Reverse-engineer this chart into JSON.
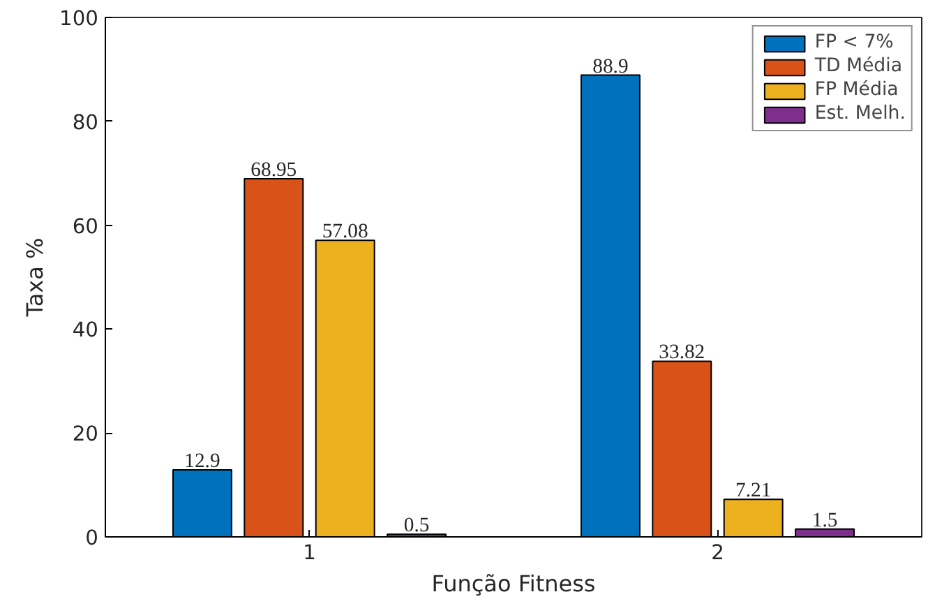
{
  "chart_data": {
    "type": "bar",
    "xlabel": "Função Fitness",
    "ylabel": "Taxa %",
    "categories": [
      "1",
      "2"
    ],
    "series": [
      {
        "name": "FP < 7%",
        "color": "#0072bd",
        "values": [
          12.9,
          88.9
        ]
      },
      {
        "name": "TD Média",
        "color": "#d95319",
        "values": [
          68.95,
          33.82
        ]
      },
      {
        "name": "FP Média",
        "color": "#edb120",
        "values": [
          57.08,
          7.21
        ]
      },
      {
        "name": "Est. Melh.",
        "color": "#7e2f8e",
        "values": [
          0.5,
          1.5
        ]
      }
    ],
    "ylim": [
      0,
      100
    ],
    "yticks": [
      0,
      20,
      40,
      60,
      80,
      100
    ],
    "data_labels": true,
    "legend": "top right",
    "grid": false
  }
}
